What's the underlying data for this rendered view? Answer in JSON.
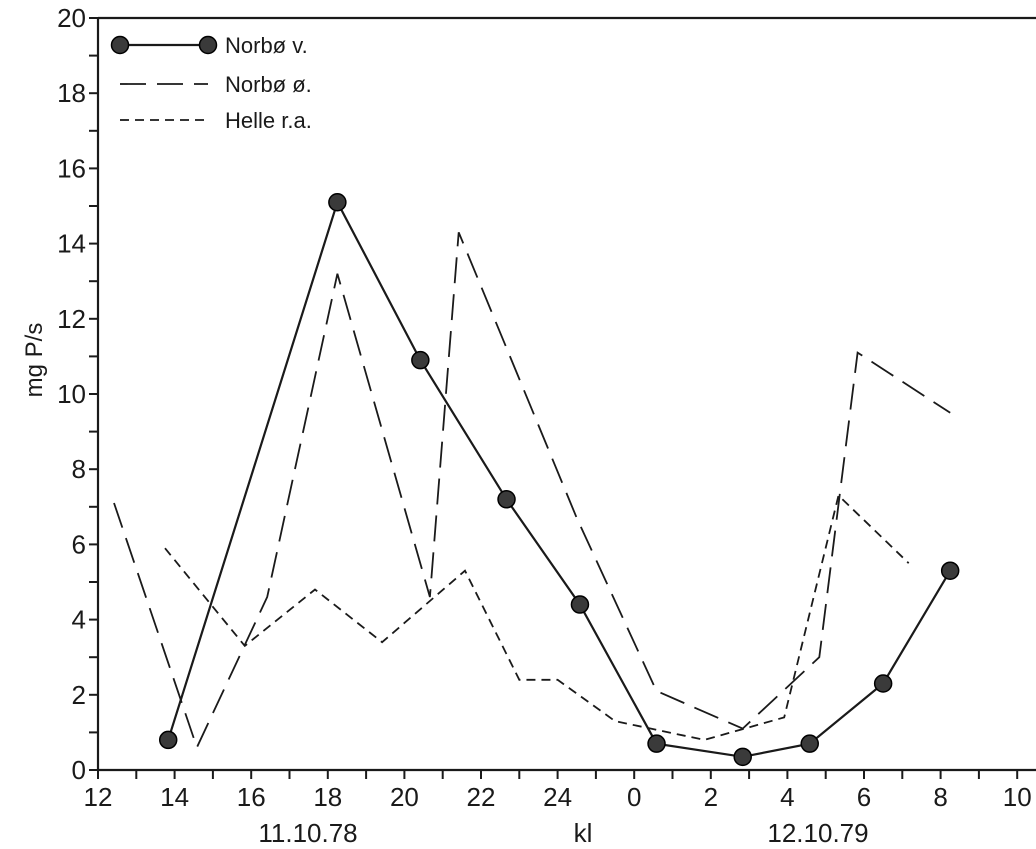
{
  "chart_data": {
    "type": "line",
    "ylabel": "mg P/s",
    "xlabel": "kl",
    "date_labels": [
      "11.10.78",
      "12.10.79"
    ],
    "ylim": [
      0,
      20
    ],
    "yticks": [
      0,
      2,
      4,
      6,
      8,
      10,
      12,
      14,
      16,
      18,
      20
    ],
    "xticks": [
      "12",
      "14",
      "16",
      "18",
      "20",
      "22",
      "24",
      "0",
      "2",
      "4",
      "6",
      "8",
      "10"
    ],
    "grid": false,
    "legend_position": "top-left",
    "series": [
      {
        "name": "Norbø v.",
        "style": "solid-markers",
        "x": [
          "13:50",
          "18:15",
          "20:25",
          "22:40",
          "00:35",
          "02:35",
          "04:50",
          "06:35",
          "08:30",
          "10:15"
        ],
        "y": [
          0.8,
          15.1,
          10.9,
          7.2,
          4.4,
          0.7,
          0.35,
          0.7,
          2.3,
          5.3
        ]
      },
      {
        "name": "Norbø ø.",
        "style": "long-dash",
        "x": [
          "12:25",
          "14:35",
          "16:25",
          "18:15",
          "20:40",
          "21:25",
          "00:30",
          "02:35",
          "04:50",
          "06:50",
          "07:50",
          "10:15"
        ],
        "y": [
          7.1,
          0.6,
          4.6,
          13.2,
          4.6,
          14.3,
          6.7,
          2.1,
          1.1,
          3.0,
          11.1,
          9.5
        ]
      },
      {
        "name": "Helle r.a.",
        "style": "short-dash",
        "x": [
          "13:45",
          "15:50",
          "17:40",
          "19:25",
          "21:35",
          "23:00",
          "00:00",
          "01:30",
          "03:50",
          "05:55",
          "07:20",
          "09:10"
        ],
        "y": [
          5.9,
          3.3,
          4.8,
          3.4,
          5.3,
          2.4,
          2.4,
          1.3,
          0.8,
          1.4,
          7.3,
          5.5
        ]
      }
    ],
    "colors": {
      "ink": "#1a1a1a",
      "marker": "#3a3a3a"
    }
  }
}
